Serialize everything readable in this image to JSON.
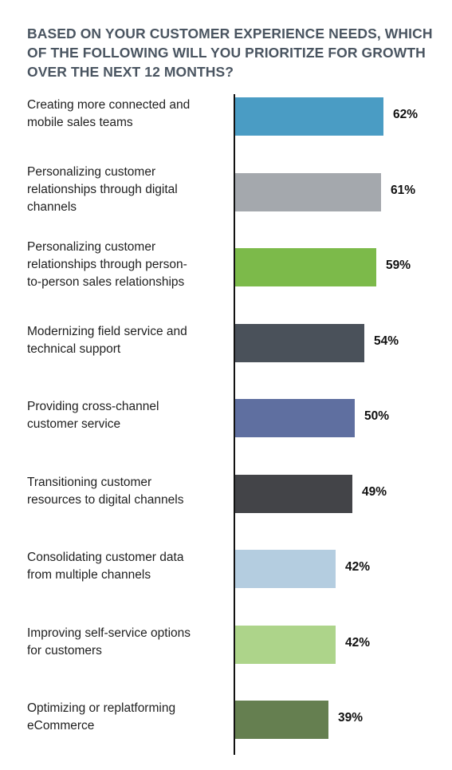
{
  "chart_data": {
    "type": "bar",
    "orientation": "horizontal",
    "title": "BASED ON YOUR CUSTOMER EXPERIENCE NEEDS, WHICH OF THE FOLLOWING WILL YOU PRIORITIZE FOR GROWTH OVER THE NEXT 12 MONTHS?",
    "xlim": [
      0,
      100
    ],
    "grid": false,
    "categories": [
      "Creating more connected and mobile sales teams",
      "Personalizing customer relationships through digital channels",
      "Personalizing customer relationships through person-to-person sales relationships",
      "Modernizing field service and technical support",
      "Providing cross-channel customer service",
      "Transitioning customer resources to digital channels",
      "Consolidating customer data from multiple channels",
      "Improving self-service options for customers",
      "Optimizing or replatforming eCommerce"
    ],
    "category_lines": [
      [
        "Creating more connected and",
        "mobile sales teams"
      ],
      [
        "Personalizing customer",
        "relationships through digital",
        "channels"
      ],
      [
        "Personalizing customer",
        "relationships through person-",
        "to-person sales relationships"
      ],
      [
        "Modernizing field service and",
        "technical support"
      ],
      [
        "Providing cross-channel",
        "customer service"
      ],
      [
        "Transitioning customer",
        "resources to digital channels"
      ],
      [
        "Consolidating customer data",
        "from multiple channels"
      ],
      [
        "Improving self-service options",
        "for customers"
      ],
      [
        "Optimizing or replatforming",
        "eCommerce"
      ]
    ],
    "values": [
      62,
      61,
      59,
      54,
      50,
      49,
      42,
      42,
      39
    ],
    "value_labels": [
      "62%",
      "61%",
      "59%",
      "54%",
      "50%",
      "49%",
      "42%",
      "42%",
      "39%"
    ],
    "colors": [
      "#4a9cc4",
      "#a4a8ad",
      "#7cba4a",
      "#4a515a",
      "#5f6fa0",
      "#434448",
      "#b4cde0",
      "#add48a",
      "#657f50"
    ]
  }
}
